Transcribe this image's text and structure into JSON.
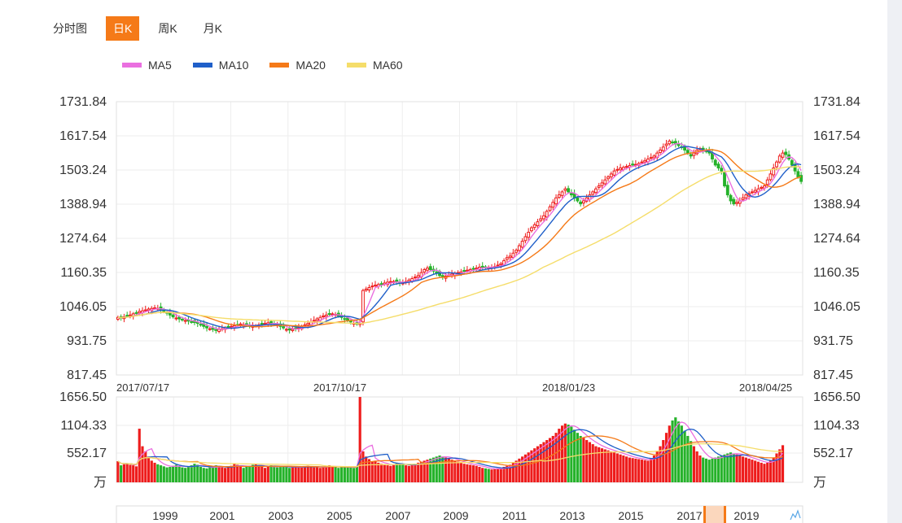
{
  "tabs": [
    "分时图",
    "日K",
    "周K",
    "月K"
  ],
  "active_tab": 1,
  "legend": [
    {
      "label": "MA5",
      "color": "#ea6fe0"
    },
    {
      "label": "MA10",
      "color": "#1f5fc9"
    },
    {
      "label": "MA20",
      "color": "#f57a18"
    },
    {
      "label": "MA60",
      "color": "#f5dd6a"
    }
  ],
  "chart_data": {
    "type": "candlestick",
    "price_axis": {
      "ticks": [
        "1731.84",
        "1617.54",
        "1503.24",
        "1388.94",
        "1274.64",
        "1160.35",
        "1046.05",
        "931.75",
        "817.45"
      ],
      "min": 817.45,
      "max": 1731.84
    },
    "dates": [
      "2017/07/17",
      "2017/10/17",
      "2018/01/23",
      "2018/04/25"
    ],
    "volume_axis": {
      "ticks": [
        "1656.50",
        "1104.33",
        "552.17"
      ],
      "unit": "万",
      "max": 1656.5
    },
    "navigator_years": [
      "1999",
      "2001",
      "2003",
      "2005",
      "2007",
      "2009",
      "2011",
      "2013",
      "2015",
      "2017",
      "2019"
    ],
    "close_series": [
      1010,
      1008,
      1012,
      1015,
      1018,
      1022,
      1025,
      1030,
      1032,
      1035,
      1038,
      1040,
      1042,
      1040,
      1035,
      1030,
      1025,
      1018,
      1012,
      1008,
      1005,
      1002,
      1000,
      998,
      995,
      993,
      990,
      985,
      980,
      975,
      972,
      970,
      968,
      970,
      972,
      975,
      978,
      980,
      982,
      985,
      988,
      986,
      984,
      982,
      980,
      982,
      985,
      988,
      990,
      992,
      990,
      988,
      985,
      980,
      975,
      970,
      968,
      970,
      972,
      975,
      980,
      985,
      990,
      995,
      1000,
      1005,
      1010,
      1015,
      1018,
      1020,
      1022,
      1020,
      1015,
      1010,
      1005,
      1000,
      995,
      990,
      988,
      990,
      1100,
      1105,
      1110,
      1115,
      1118,
      1120,
      1122,
      1125,
      1128,
      1130,
      1130,
      1128,
      1126,
      1125,
      1130,
      1135,
      1140,
      1145,
      1150,
      1160,
      1170,
      1175,
      1170,
      1165,
      1160,
      1150,
      1145,
      1148,
      1152,
      1155,
      1158,
      1160,
      1162,
      1165,
      1168,
      1170,
      1172,
      1175,
      1178,
      1180,
      1178,
      1176,
      1178,
      1180,
      1185,
      1190,
      1200,
      1210,
      1215,
      1225,
      1235,
      1250,
      1265,
      1280,
      1295,
      1310,
      1320,
      1330,
      1340,
      1350,
      1365,
      1380,
      1395,
      1410,
      1420,
      1430,
      1440,
      1430,
      1420,
      1410,
      1400,
      1390,
      1400,
      1410,
      1420,
      1430,
      1440,
      1450,
      1460,
      1470,
      1480,
      1490,
      1500,
      1505,
      1510,
      1512,
      1515,
      1518,
      1520,
      1522,
      1525,
      1530,
      1535,
      1540,
      1545,
      1550,
      1560,
      1570,
      1580,
      1590,
      1600,
      1595,
      1590,
      1585,
      1580,
      1570,
      1560,
      1550,
      1560,
      1570,
      1575,
      1570,
      1565,
      1560,
      1540,
      1520,
      1510,
      1500,
      1450,
      1420,
      1400,
      1390,
      1395,
      1400,
      1410,
      1420,
      1425,
      1430,
      1435,
      1440,
      1445,
      1450,
      1470,
      1490,
      1510,
      1530,
      1550,
      1560,
      1555,
      1540,
      1520,
      1500,
      1480,
      1465
    ],
    "volume_series": [
      410,
      330,
      350,
      360,
      340,
      330,
      310,
      1040,
      700,
      600,
      500,
      420,
      380,
      350,
      330,
      310,
      290,
      300,
      320,
      340,
      310,
      290,
      280,
      300,
      330,
      360,
      340,
      300,
      280,
      270,
      290,
      310,
      330,
      300,
      290,
      280,
      300,
      320,
      360,
      340,
      300,
      280,
      300,
      320,
      340,
      360,
      330,
      300,
      280,
      300,
      330,
      310,
      290,
      300,
      320,
      300,
      280,
      290,
      310,
      300,
      290,
      300,
      320,
      310,
      290,
      300,
      280,
      290,
      310,
      330,
      320,
      300,
      280,
      290,
      310,
      300,
      290,
      280,
      300,
      1656,
      600,
      500,
      450,
      400,
      420,
      380,
      360,
      340,
      330,
      320,
      350,
      380,
      360,
      340,
      330,
      320,
      340,
      360,
      380,
      400,
      420,
      440,
      460,
      480,
      500,
      520,
      500,
      480,
      460,
      440,
      420,
      400,
      380,
      360,
      350,
      340,
      330,
      320,
      300,
      280,
      270,
      260,
      250,
      260,
      270,
      280,
      300,
      320,
      340,
      380,
      420,
      460,
      500,
      540,
      580,
      620,
      660,
      700,
      740,
      780,
      820,
      860,
      900,
      960,
      1040,
      1100,
      1140,
      1120,
      1080,
      1020,
      960,
      900,
      860,
      820,
      780,
      740,
      700,
      680,
      660,
      640,
      620,
      600,
      580,
      560,
      540,
      520,
      500,
      480,
      470,
      460,
      450,
      440,
      430,
      420,
      460,
      520,
      600,
      700,
      820,
      960,
      1100,
      1200,
      1260,
      1180,
      1100,
      1000,
      900,
      800,
      700,
      600,
      520,
      480,
      460,
      440,
      460,
      480,
      500,
      520,
      540,
      560,
      580,
      560,
      540,
      520,
      500,
      480,
      460,
      440,
      420,
      400,
      380,
      360,
      380,
      420,
      480,
      560,
      640,
      720
    ],
    "up_color": "#ee1c1c",
    "down_color": "#25b22a",
    "grid_color": "#eeeeee"
  }
}
